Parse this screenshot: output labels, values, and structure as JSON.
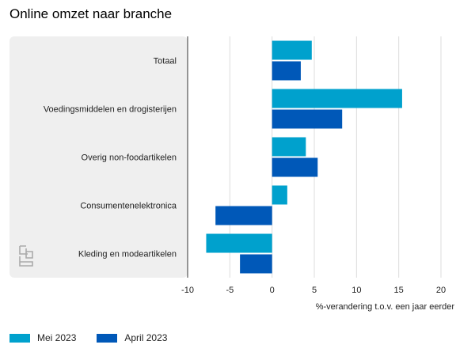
{
  "chart_data": {
    "type": "bar",
    "orientation": "horizontal",
    "title": "Online omzet naar branche",
    "xlabel": "%-verandering t.o.v. een jaar eerder",
    "ylabel": "",
    "xlim": [
      -10,
      20
    ],
    "xticks": [
      -10,
      -5,
      0,
      5,
      10,
      15,
      20
    ],
    "xtick_labels": [
      "-10",
      "-5",
      "0",
      "5",
      "10",
      "15",
      "20"
    ],
    "grid": true,
    "legend_position": "bottom-left",
    "categories": [
      "Totaal",
      "Voedingsmiddelen en drogisterijen",
      "Overig non-foodartikelen",
      "Consumentenelektronica",
      "Kleding en modeartikelen"
    ],
    "series": [
      {
        "name": "Mei 2023",
        "color": "#00a1cd",
        "values": [
          4.7,
          15.4,
          4.0,
          1.8,
          -7.8
        ]
      },
      {
        "name": "April 2023",
        "color": "#0058b8",
        "values": [
          3.4,
          8.3,
          5.4,
          -6.7,
          -3.8
        ]
      }
    ]
  },
  "logo": {
    "icon": "cbs-logo-icon",
    "color": "#aaaaaa"
  }
}
